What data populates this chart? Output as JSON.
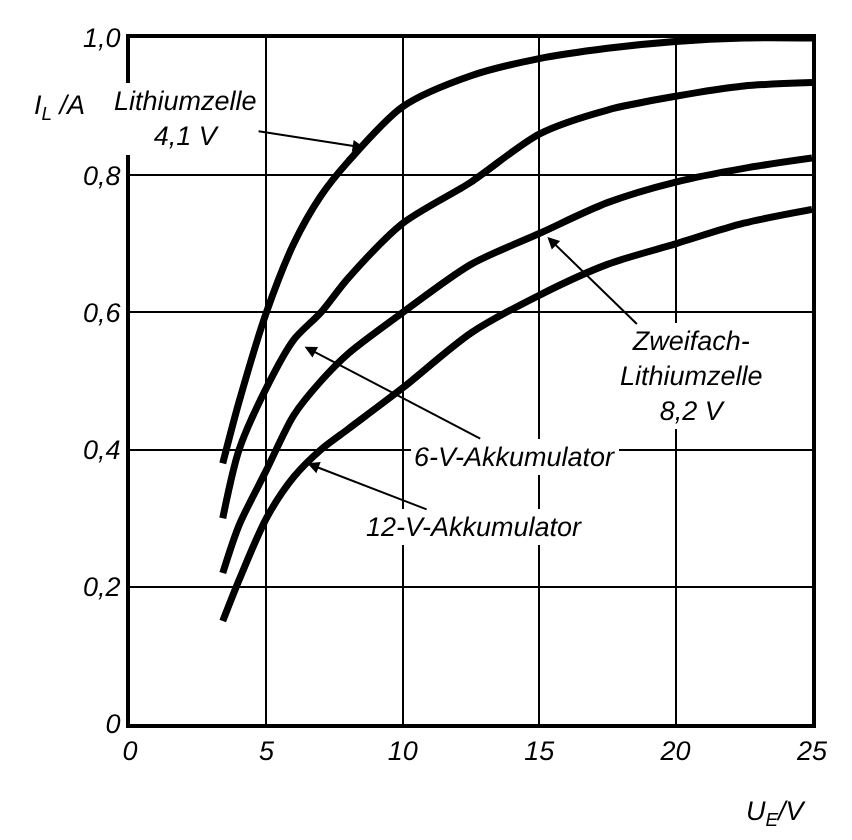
{
  "chart_data": {
    "type": "line",
    "xlabel": "U$_{E}$/V",
    "ylabel": "I$_{L}$ /A",
    "xlim": [
      0,
      25
    ],
    "xticks": [
      0,
      5,
      10,
      15,
      20,
      25
    ],
    "ylim": [
      0,
      1.0
    ],
    "yticks": [
      0,
      {
        "value": 0.2,
        "label": "0,2"
      },
      {
        "value": 0.4,
        "label": "0,4"
      },
      {
        "value": 0.6,
        "label": "0,6"
      },
      {
        "value": 0.8,
        "label": "0,8"
      },
      {
        "value": 1.0,
        "label": "1,0"
      }
    ],
    "grid": true,
    "marker": "none",
    "line_style": "solid",
    "x": [
      3.4,
      4,
      5,
      6,
      7,
      8,
      10,
      12.5,
      15,
      17.5,
      20,
      22.5,
      25
    ],
    "series": [
      {
        "color": "#000000",
        "values": [
          0.38,
          0.47,
          0.6,
          0.7,
          0.77,
          0.82,
          0.9,
          0.945,
          0.97,
          0.985,
          0.995,
          1.0,
          1.0
        ]
      },
      {
        "color": "#000000",
        "values": [
          0.3,
          0.4,
          0.49,
          0.56,
          0.6,
          0.65,
          0.73,
          0.79,
          0.86,
          0.895,
          0.915,
          0.93,
          0.935
        ]
      },
      {
        "color": "#000000",
        "values": [
          0.22,
          0.29,
          0.37,
          0.45,
          0.5,
          0.54,
          0.6,
          0.67,
          0.715,
          0.76,
          0.79,
          0.81,
          0.825
        ]
      },
      {
        "color": "#000000",
        "values": [
          0.15,
          0.21,
          0.3,
          0.36,
          0.4,
          0.43,
          0.49,
          0.57,
          0.625,
          0.67,
          0.7,
          0.73,
          0.75
        ]
      }
    ],
    "annotations": [
      {
        "text": "Lithiumzelle\n4,1 V",
        "x": 8.6,
        "y": 0.84
      },
      {
        "text": "Zweifach-\nLithiumzelle\n8,2 V",
        "x": 15.3,
        "y": 0.71
      },
      {
        "text": "6-V-Akkumulator",
        "x": 6.4,
        "y": 0.55
      },
      {
        "text": "12-V-Akkumulator",
        "x": 6.5,
        "y": 0.38
      }
    ]
  }
}
